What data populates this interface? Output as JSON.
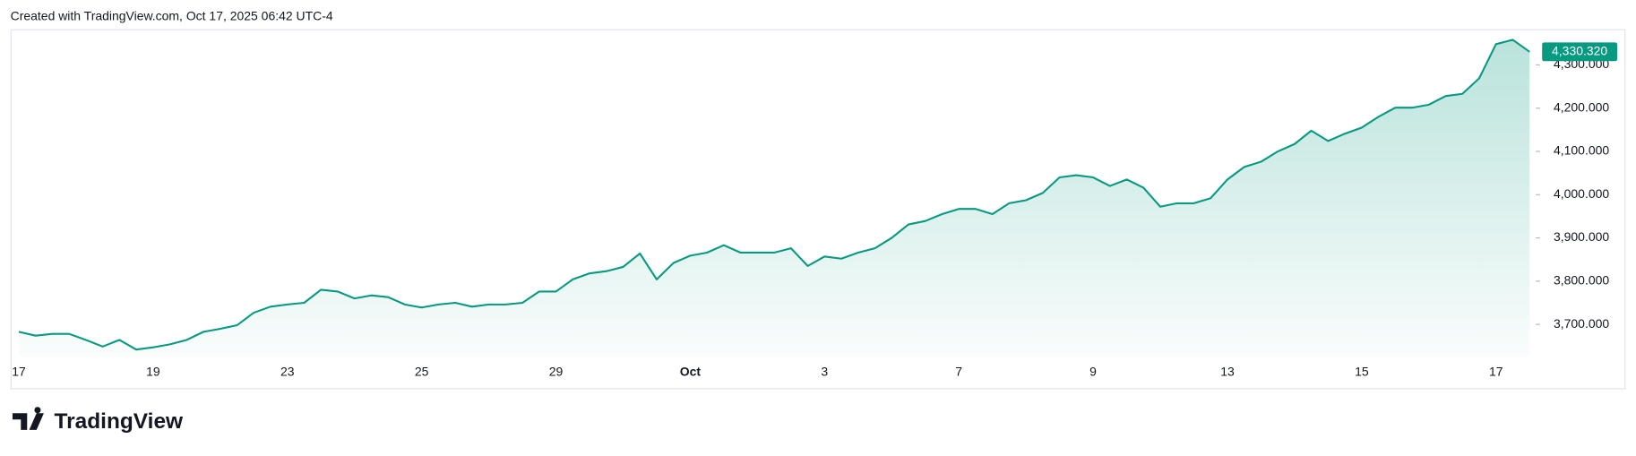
{
  "header": "Created with TradingView.com, Oct 17, 2025 06:42 UTC-4",
  "logo": "TradingView",
  "chart_data": {
    "type": "area",
    "categories": [
      "17",
      null,
      null,
      null,
      null,
      null,
      null,
      null,
      "19",
      null,
      null,
      null,
      null,
      null,
      null,
      null,
      "23",
      null,
      null,
      null,
      null,
      null,
      null,
      null,
      "25",
      null,
      null,
      null,
      null,
      null,
      null,
      null,
      "29",
      null,
      null,
      null,
      null,
      null,
      null,
      null,
      "Oct",
      null,
      null,
      null,
      null,
      null,
      null,
      null,
      "3",
      null,
      null,
      null,
      null,
      null,
      null,
      null,
      "7",
      null,
      null,
      null,
      null,
      null,
      null,
      null,
      "9",
      null,
      null,
      null,
      null,
      null,
      null,
      null,
      "13",
      null,
      null,
      null,
      null,
      null,
      null,
      null,
      "15",
      null,
      null,
      null,
      null,
      null,
      null,
      null,
      "17",
      null,
      null
    ],
    "series": [
      {
        "color": "#089981",
        "values": [
          3683,
          3674,
          3678,
          3678,
          3664,
          3649,
          3664,
          3642,
          3647,
          3654,
          3664,
          3683,
          3690,
          3698,
          3727,
          3741,
          3746,
          3750,
          3780,
          3776,
          3760,
          3767,
          3763,
          3746,
          3739,
          3746,
          3750,
          3741,
          3746,
          3746,
          3750,
          3776,
          3776,
          3804,
          3818,
          3823,
          3833,
          3864,
          3804,
          3842,
          3859,
          3866,
          3883,
          3866,
          3866,
          3866,
          3876,
          3835,
          3857,
          3852,
          3866,
          3876,
          3900,
          3931,
          3939,
          3955,
          3967,
          3967,
          3955,
          3980,
          3987,
          4004,
          4040,
          4045,
          4040,
          4020,
          4035,
          4016,
          3972,
          3980,
          3980,
          3992,
          4035,
          4064,
          4076,
          4100,
          4117,
          4148,
          4124,
          4141,
          4155,
          4180,
          4201,
          4201,
          4208,
          4228,
          4233,
          4269,
          4348,
          4358,
          4330.32
        ],
        "value_labels": [
          null,
          null,
          null,
          null,
          null,
          null,
          null,
          null,
          null,
          null,
          null,
          null,
          null,
          null,
          null,
          null,
          null,
          null,
          null,
          null,
          null,
          null,
          null,
          null,
          null,
          null,
          null,
          null,
          null,
          null,
          null,
          null,
          null,
          null,
          null,
          null,
          null,
          null,
          null,
          null,
          null,
          null,
          null,
          null,
          null,
          null,
          null,
          null,
          null,
          null,
          null,
          null,
          null,
          null,
          null,
          null,
          null,
          null,
          null,
          null,
          null,
          null,
          null,
          null,
          null,
          null,
          null,
          null,
          null,
          null,
          null,
          null,
          null,
          null,
          null,
          null,
          null,
          null,
          null,
          null,
          null,
          null,
          null,
          null,
          null,
          null,
          null,
          null,
          null,
          null,
          "4,330.320"
        ]
      }
    ],
    "ylim": [
      3625,
      4380
    ],
    "yticks": [
      {
        "value": 3700,
        "label": "3,700.000"
      },
      {
        "value": 3800,
        "label": "3,800.000"
      },
      {
        "value": 3900,
        "label": "3,900.000"
      },
      {
        "value": 4000,
        "label": "4,000.000"
      },
      {
        "value": 4100,
        "label": "4,100.000"
      },
      {
        "value": 4200,
        "label": "4,200.000"
      },
      {
        "value": 4300,
        "label": "4,300.000"
      }
    ]
  }
}
